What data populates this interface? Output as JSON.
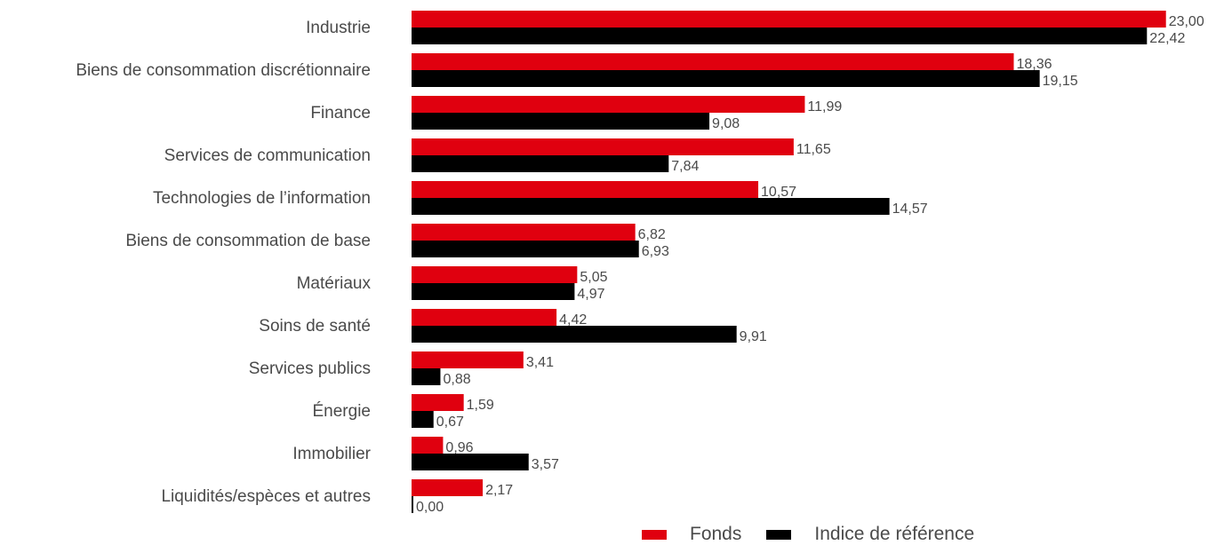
{
  "chart_data": {
    "type": "bar",
    "orientation": "horizontal",
    "categories": [
      "Industrie",
      "Biens de consommation discrétionnaire",
      "Finance",
      "Services de communication",
      "Technologies de l’information",
      "Biens de consommation de base",
      "Matériaux",
      "Soins de santé",
      "Services publics",
      "Énergie",
      "Immobilier",
      "Liquidités/espèces et autres"
    ],
    "series": [
      {
        "name": "Fonds",
        "color": "#e0000f",
        "values": [
          23.0,
          18.36,
          11.99,
          11.65,
          10.57,
          6.82,
          5.05,
          4.42,
          3.41,
          1.59,
          0.96,
          2.17
        ],
        "labels": [
          "23,00",
          "18,36",
          "11,99",
          "11,65",
          "10,57",
          "6,82",
          "5,05",
          "4,42",
          "3,41",
          "1,59",
          "0,96",
          "2,17"
        ]
      },
      {
        "name": "Indice de référence",
        "color": "#000000",
        "values": [
          22.42,
          19.15,
          9.08,
          7.84,
          14.57,
          6.93,
          4.97,
          9.91,
          0.88,
          0.67,
          3.57,
          0.0
        ],
        "labels": [
          "22,42",
          "19,15",
          "9,08",
          "7,84",
          "14,57",
          "6,93",
          "4,97",
          "9,91",
          "0,88",
          "0,67",
          "3,57",
          "0,00"
        ]
      }
    ],
    "legend_position": "bottom",
    "grid": false
  }
}
